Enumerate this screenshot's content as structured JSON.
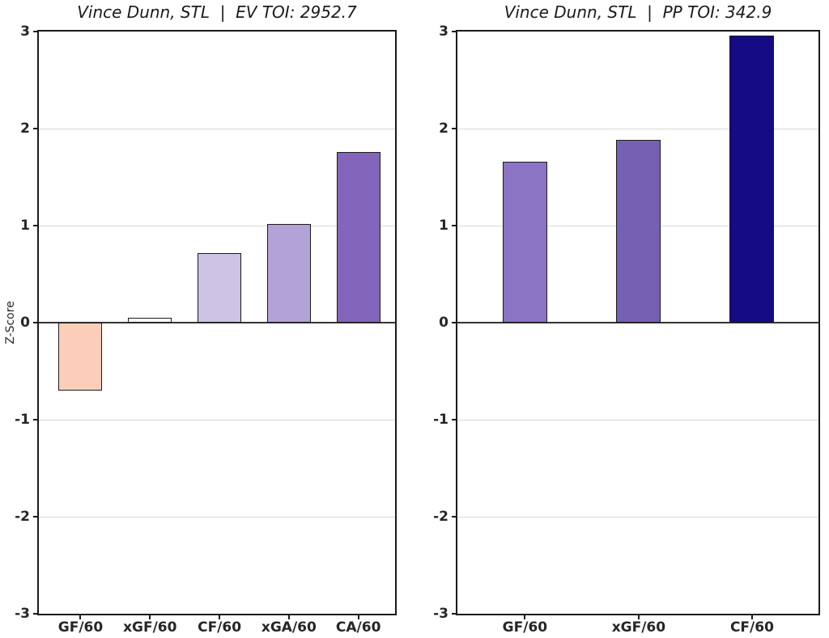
{
  "chart_data": [
    {
      "type": "bar",
      "title": "Vince Dunn, STL  |  EV TOI: 2952.7",
      "ylabel": "Z-Score",
      "xlabel": "",
      "ylim": [
        -3,
        3
      ],
      "yticks": [
        3,
        2,
        1,
        0,
        -1,
        -2,
        -3
      ],
      "grid": "horizontal",
      "legend": "none",
      "categories": [
        "GF/60",
        "xGF/60",
        "CF/60",
        "xGA/60",
        "CA/60"
      ],
      "values": [
        -0.7,
        0.05,
        0.72,
        1.02,
        1.76
      ],
      "bar_colors": [
        "#fcceba",
        "#ffffff",
        "#cdc3e5",
        "#b2a2d7",
        "#8365bb"
      ]
    },
    {
      "type": "bar",
      "title": "Vince Dunn, STL  |  PP TOI: 342.9",
      "ylabel": "",
      "xlabel": "",
      "ylim": [
        -3,
        3
      ],
      "yticks": [
        3,
        2,
        1,
        0,
        -1,
        -2,
        -3
      ],
      "grid": "horizontal",
      "legend": "none",
      "categories": [
        "GF/60",
        "xGF/60",
        "CF/60"
      ],
      "values": [
        1.66,
        1.88,
        2.96
      ],
      "bar_colors": [
        "#8b74c4",
        "#7660b3",
        "#140b85"
      ]
    }
  ],
  "style": {
    "background": "#ffffff",
    "grid_color": "#d8d8d8",
    "zero_line_color": "#333333",
    "bar_edge_color": "#1c1c1c",
    "spine_color": "#1a1a1a",
    "text_color": "#262626"
  }
}
